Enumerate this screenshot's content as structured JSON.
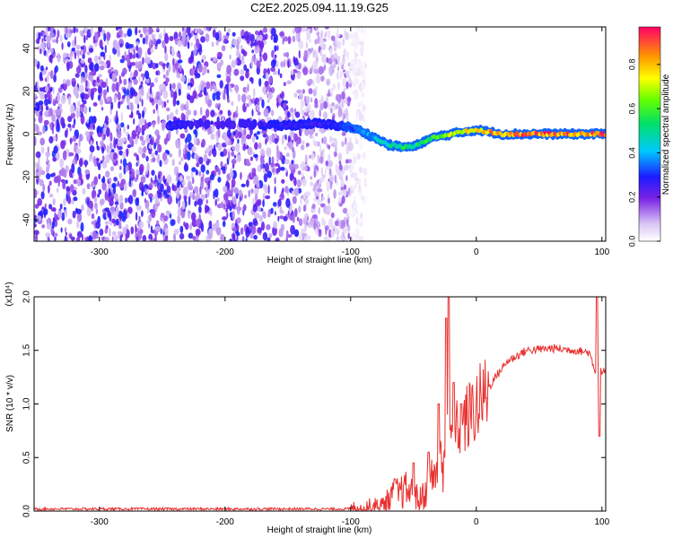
{
  "title": "C2E2.2025.094.11.19.G25",
  "chart_data": [
    {
      "type": "heatmap",
      "name": "spectrogram",
      "xlabel": "Height of straight line (km)",
      "ylabel": "Frequency (Hz)",
      "xlim": [
        -352,
        103
      ],
      "ylim": [
        -50,
        50
      ],
      "xticks": [
        -300,
        -200,
        -100,
        0,
        100
      ],
      "xtick_labels": [
        "-300",
        "-200",
        "-100",
        "0",
        "100"
      ],
      "yticks": [
        -40,
        -20,
        0,
        20,
        40
      ],
      "ytick_labels": [
        "-40",
        "-20",
        "0",
        "20",
        "40"
      ],
      "noise_region_x": [
        -352,
        -100
      ],
      "signal_trace": {
        "x": [
          -245,
          -200,
          -160,
          -150,
          -130,
          -110,
          -100,
          -90,
          -80,
          -70,
          -60,
          -50,
          -40,
          -30,
          -20,
          -10,
          0,
          10,
          20,
          40,
          60,
          80,
          103
        ],
        "y": [
          4,
          5,
          4,
          4,
          5,
          4,
          3,
          1,
          -2,
          -5,
          -6,
          -6,
          -3,
          -1,
          0,
          1,
          2,
          1,
          0,
          0,
          0,
          0,
          0
        ],
        "amplitude": [
          0.3,
          0.25,
          0.3,
          0.3,
          0.3,
          0.3,
          0.35,
          0.4,
          0.45,
          0.5,
          0.6,
          0.55,
          0.6,
          0.7,
          0.75,
          0.8,
          0.85,
          0.9,
          0.9,
          0.95,
          0.95,
          0.95,
          0.95
        ]
      },
      "colorbar": {
        "label": "Normalized spectral amplitude",
        "range": [
          0,
          0.97
        ],
        "ticks": [
          0.0,
          0.2,
          0.4,
          0.6,
          0.8
        ],
        "tick_labels": [
          "0.0",
          "0.2",
          "0.4",
          "0.6",
          "0.8"
        ]
      }
    },
    {
      "type": "line",
      "name": "snr",
      "xlabel": "Height of straight line (km)",
      "ylabel": "SNR (10 * v/v)",
      "scale_label": "(x10⁴)",
      "xlim": [
        -352,
        103
      ],
      "ylim": [
        0,
        2.0
      ],
      "xticks": [
        -300,
        -200,
        -100,
        0,
        100
      ],
      "xtick_labels": [
        "-300",
        "-200",
        "-100",
        "0",
        "100"
      ],
      "yticks": [
        0,
        0.5,
        1.0,
        1.5,
        2.0
      ],
      "ytick_labels": [
        "0.0",
        "0.5",
        "1.0",
        "1.5",
        "2.0"
      ],
      "color": "#e8312f",
      "envelope": {
        "x": [
          -352,
          -100,
          -75,
          -65,
          -55,
          -45,
          -35,
          -28,
          -22,
          -15,
          -5,
          5,
          15,
          25,
          40,
          60,
          80,
          90,
          95,
          100,
          103
        ],
        "y": [
          0.02,
          0.02,
          0.05,
          0.15,
          0.2,
          0.1,
          0.3,
          0.5,
          0.7,
          0.75,
          0.9,
          1.05,
          1.25,
          1.4,
          1.5,
          1.52,
          1.5,
          1.48,
          1.3,
          1.3,
          1.3
        ]
      },
      "spikes": {
        "x": [
          -65,
          -50,
          -38,
          -30,
          -24,
          -22,
          -18,
          -12,
          96,
          98
        ],
        "y": [
          0.3,
          0.45,
          0.55,
          1.0,
          1.8,
          2.0,
          1.2,
          1.0,
          2.0,
          0.7
        ]
      }
    }
  ]
}
